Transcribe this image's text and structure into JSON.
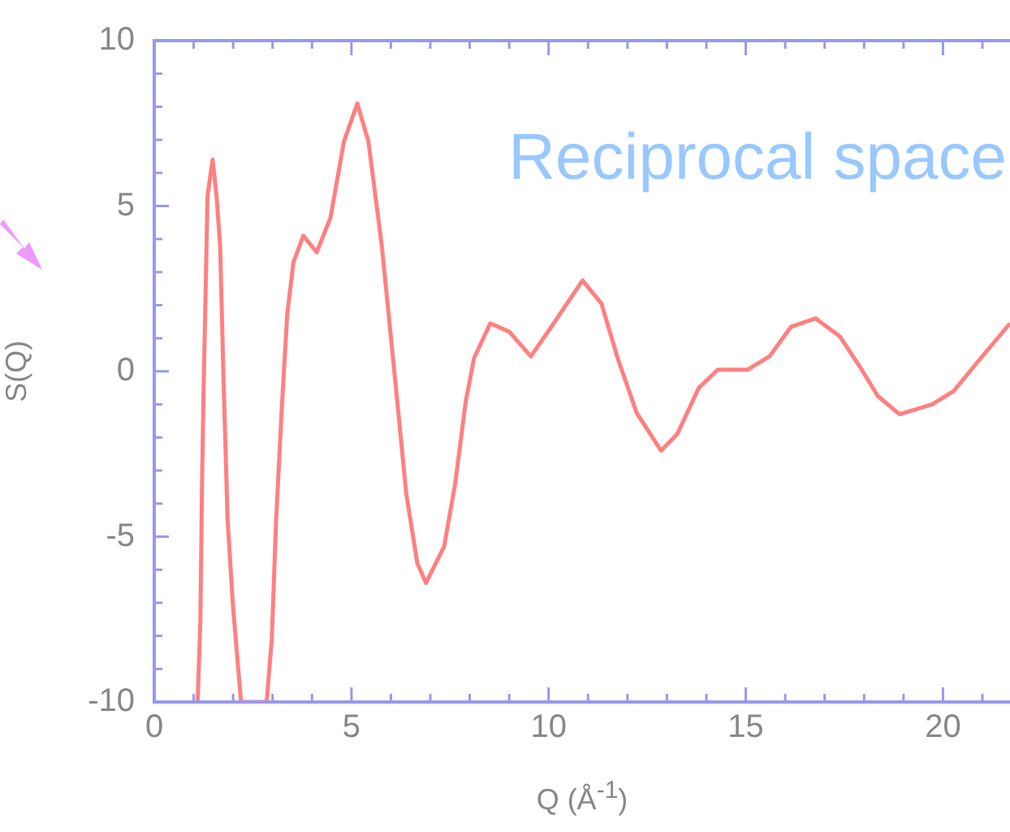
{
  "chart_data": {
    "type": "line",
    "xlabel": "Q (Å$^{-1}$)",
    "ylabel": "S(Q)",
    "annotations": [
      "Reciprocal space"
    ],
    "xlim": [
      0,
      21.7
    ],
    "ylim": [
      -10,
      10
    ],
    "xticks": [
      0,
      {
        "value": 1,
        "label": null
      },
      {
        "value": 2,
        "label": null
      },
      {
        "value": 3,
        "label": null
      },
      {
        "value": 4,
        "label": null
      },
      5,
      {
        "value": 6,
        "label": null
      },
      {
        "value": 7,
        "label": null
      },
      {
        "value": 8,
        "label": null
      },
      {
        "value": 9,
        "label": null
      },
      10,
      {
        "value": 11,
        "label": null
      },
      {
        "value": 12,
        "label": null
      },
      {
        "value": 13,
        "label": null
      },
      {
        "value": 14,
        "label": null
      },
      15,
      {
        "value": 16,
        "label": null
      },
      {
        "value": 17,
        "label": null
      },
      {
        "value": 18,
        "label": null
      },
      {
        "value": 19,
        "label": null
      },
      20,
      {
        "value": 21,
        "label": null
      }
    ],
    "yticks": [
      -10,
      {
        "value": -9,
        "label": null
      },
      {
        "value": -8,
        "label": null
      },
      {
        "value": -7,
        "label": null
      },
      {
        "value": -6,
        "label": null
      },
      -5,
      {
        "value": -4,
        "label": null
      },
      {
        "value": -3,
        "label": null
      },
      {
        "value": -2,
        "label": null
      },
      {
        "value": -1,
        "label": null
      },
      0,
      {
        "value": 1,
        "label": null
      },
      {
        "value": 2,
        "label": null
      },
      {
        "value": 3,
        "label": null
      },
      {
        "value": 4,
        "label": null
      },
      5,
      {
        "value": 6,
        "label": null
      },
      {
        "value": 7,
        "label": null
      },
      {
        "value": 8,
        "label": null
      },
      {
        "value": 9,
        "label": null
      },
      10
    ],
    "series": [
      {
        "color": "#ff8080",
        "x": [
          1.1,
          1.17,
          1.21,
          1.25,
          1.31,
          1.35,
          1.48,
          1.58,
          1.67,
          1.76,
          1.86,
          1.99,
          2.2,
          2.85,
          2.98,
          3.09,
          3.23,
          3.37,
          3.53,
          3.78,
          4.12,
          4.47,
          4.81,
          5.15,
          5.43,
          5.77,
          6.12,
          6.39,
          6.67,
          6.89,
          7.35,
          7.63,
          7.9,
          8.11,
          8.52,
          9.0,
          9.55,
          10.1,
          10.86,
          11.34,
          11.75,
          12.23,
          12.85,
          13.26,
          13.81,
          14.29,
          15.05,
          15.6,
          16.15,
          16.77,
          17.39,
          17.94,
          18.35,
          18.9,
          19.73,
          20.27,
          20.96,
          21.7
        ],
        "values": [
          -10,
          -7.5,
          -3.5,
          -0.6,
          2.85,
          5.3,
          6.4,
          5.3,
          3.8,
          -0.4,
          -4.5,
          -7,
          -10,
          -10,
          -8.1,
          -4.5,
          -1.2,
          1.7,
          3.3,
          4.1,
          3.6,
          4.65,
          6.95,
          8.1,
          6.95,
          3.8,
          -0.4,
          -3.7,
          -5.8,
          -6.4,
          -5.3,
          -3.4,
          -0.9,
          0.4,
          1.45,
          1.2,
          0.45,
          1.4,
          2.75,
          2.05,
          0.4,
          -1.25,
          -2.4,
          -1.9,
          -0.5,
          0.05,
          0.05,
          0.45,
          1.35,
          1.6,
          1.05,
          0.05,
          -0.75,
          -1.3,
          -1.0,
          -0.6,
          0.4,
          1.45
        ]
      }
    ]
  }
}
